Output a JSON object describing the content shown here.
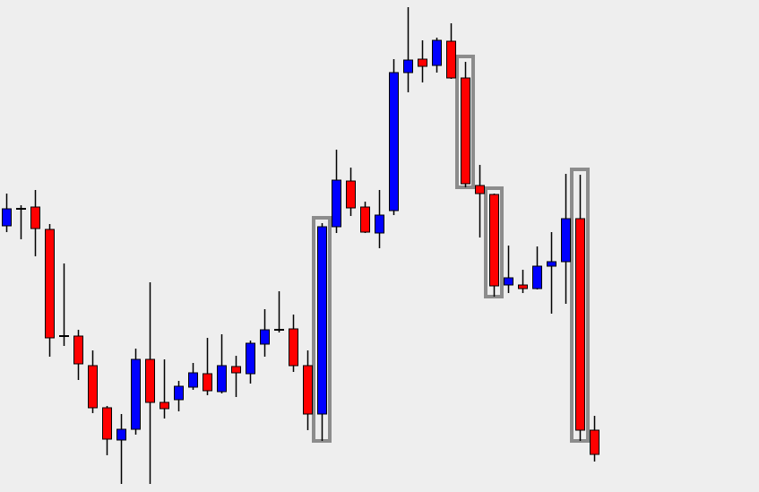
{
  "chart_data": {
    "type": "candlestick",
    "title": "",
    "xlabel": "",
    "ylabel": "",
    "axes_shown": false,
    "grid": false,
    "ylim": [
      0,
      549
    ],
    "colors": {
      "background": "#eeeeee",
      "bullish": "#0000ff",
      "bearish": "#ff0000",
      "outline": "#000000",
      "highlight": "#8c8c8c"
    },
    "candles_ohlc": [
      [
        297,
        333,
        290,
        316
      ],
      [
        316,
        320,
        282,
        316
      ],
      [
        318,
        337,
        263,
        294
      ],
      [
        293,
        299,
        151,
        172
      ],
      [
        174,
        255,
        163,
        174
      ],
      [
        174,
        181,
        125,
        143
      ],
      [
        141,
        158,
        88,
        94
      ],
      [
        94,
        96,
        41,
        59
      ],
      [
        58,
        87,
        9,
        70
      ],
      [
        70,
        160,
        64,
        148
      ],
      [
        148,
        234,
        9,
        100
      ],
      [
        100,
        148,
        82,
        93
      ],
      [
        103,
        124,
        90,
        118
      ],
      [
        117,
        144,
        114,
        133
      ],
      [
        132,
        172,
        108,
        113
      ],
      [
        112,
        176,
        110,
        141
      ],
      [
        140,
        152,
        106,
        133
      ],
      [
        132,
        169,
        121,
        166
      ],
      [
        165,
        204,
        151,
        181
      ],
      [
        181,
        224,
        178,
        181
      ],
      [
        182,
        198,
        134,
        141
      ],
      [
        141,
        158,
        69,
        87
      ],
      [
        87,
        300,
        57,
        296
      ],
      [
        296,
        382,
        289,
        348
      ],
      [
        347,
        362,
        308,
        317
      ],
      [
        318,
        324,
        289,
        290
      ],
      [
        289,
        337,
        272,
        309
      ],
      [
        314,
        483,
        309,
        468
      ],
      [
        468,
        541,
        446,
        482
      ],
      [
        483,
        504,
        457,
        475
      ],
      [
        476,
        507,
        468,
        504
      ],
      [
        503,
        523,
        461,
        462
      ],
      [
        462,
        480,
        340,
        344
      ],
      [
        342,
        365,
        284,
        333
      ],
      [
        332,
        333,
        218,
        230
      ],
      [
        231,
        275,
        222,
        239
      ],
      [
        231,
        248,
        222,
        227
      ],
      [
        227,
        274,
        226,
        252
      ],
      [
        252,
        290,
        199,
        257
      ],
      [
        257,
        355,
        210,
        305
      ],
      [
        305,
        354,
        57,
        69
      ],
      [
        69,
        85,
        34,
        42
      ]
    ],
    "highlighted_candles": [
      22,
      32,
      34,
      40
    ]
  }
}
